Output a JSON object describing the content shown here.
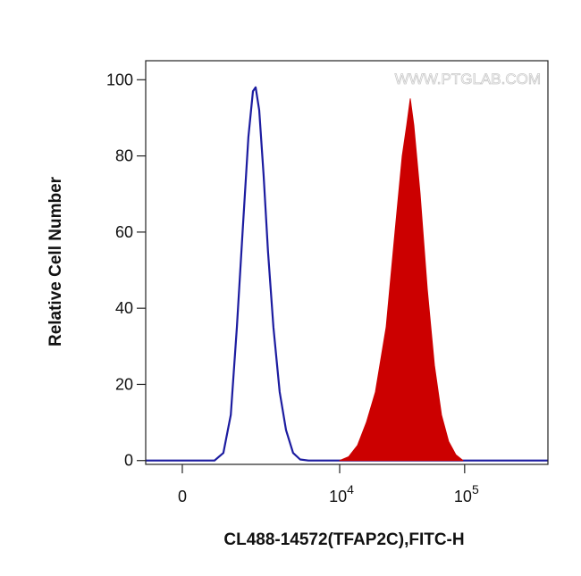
{
  "chart_data": {
    "type": "histogram-overlay",
    "xlabel": "CL488-14572(TFAP2C),FITC-H",
    "ylabel": "Relative Cell Number",
    "watermark": "WWW.PTGLAB.COM",
    "xscale": "biexponential",
    "xlim": [
      -805,
      463000
    ],
    "ylim": [
      -1,
      105
    ],
    "xticks": [
      0,
      {
        "value": 10000,
        "label": "10^4"
      },
      {
        "value": 100000,
        "label": "10^5"
      }
    ],
    "yticks": [
      0,
      20,
      40,
      60,
      80,
      100
    ],
    "series": [
      {
        "color": "#1c1ca0",
        "fill": false,
        "x": [
          -805,
          696,
          921,
          1127,
          1310,
          1515,
          1708,
          1884,
          1992,
          2148,
          2349,
          2568,
          2859,
          3232,
          3655,
          4188,
          4786,
          5589,
          463000
        ],
        "values": [
          0,
          0,
          2,
          12,
          35,
          62,
          85,
          97,
          98,
          92,
          75,
          55,
          35,
          18,
          8,
          2,
          0.3,
          0,
          0
        ]
      },
      {
        "color": "#cc0000",
        "fill": true,
        "x": [
          10000,
          11790,
          13910,
          16390,
          19350,
          23570,
          27770,
          31700,
          34410,
          36740,
          39260,
          44030,
          50240,
          57330,
          65320,
          74530,
          85060,
          96930
        ],
        "values": [
          0,
          1,
          4,
          10,
          18,
          35,
          60,
          80,
          88,
          95,
          88,
          70,
          45,
          25,
          12,
          5,
          1.5,
          0
        ]
      }
    ]
  }
}
